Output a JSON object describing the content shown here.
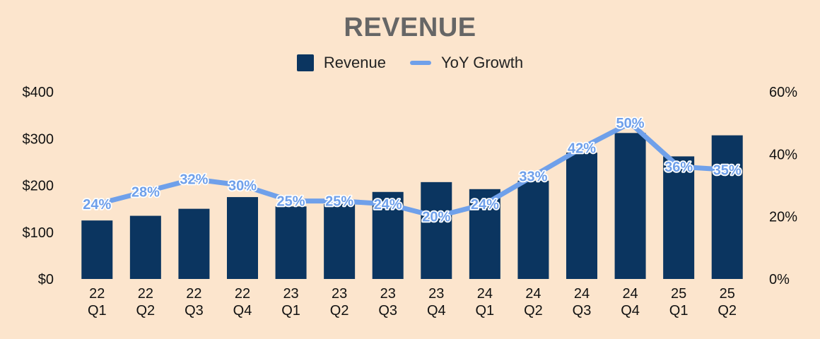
{
  "chart_data": {
    "type": "bar",
    "title": "REVENUE",
    "categories": [
      [
        "22",
        "Q1"
      ],
      [
        "22",
        "Q2"
      ],
      [
        "22",
        "Q3"
      ],
      [
        "22",
        "Q4"
      ],
      [
        "23",
        "Q1"
      ],
      [
        "23",
        "Q2"
      ],
      [
        "23",
        "Q3"
      ],
      [
        "23",
        "Q4"
      ],
      [
        "24",
        "Q1"
      ],
      [
        "24",
        "Q2"
      ],
      [
        "24",
        "Q3"
      ],
      [
        "24",
        "Q4"
      ],
      [
        "25",
        "Q1"
      ],
      [
        "25",
        "Q2"
      ]
    ],
    "series": [
      {
        "name": "Revenue",
        "type": "bar",
        "axis": "left",
        "color": "#0b3560",
        "values": [
          125,
          135,
          150,
          175,
          155,
          160,
          186,
          207,
          192,
          210,
          270,
          312,
          262,
          307
        ]
      },
      {
        "name": "YoY Growth",
        "type": "line",
        "axis": "right",
        "color": "#6fa0ea",
        "values": [
          24,
          28,
          32,
          30,
          25,
          25,
          24,
          20,
          24,
          33,
          42,
          50,
          36,
          35
        ],
        "labels": [
          "24%",
          "28%",
          "32%",
          "30%",
          "25%",
          "25%",
          "24%",
          "20%",
          "24%",
          "33%",
          "42%",
          "50%",
          "36%",
          "35%"
        ]
      }
    ],
    "y_left": {
      "min": 0,
      "max": 400,
      "ticks": [
        0,
        100,
        200,
        300,
        400
      ],
      "tick_labels": [
        "$0",
        "$100",
        "$200",
        "$300",
        "$400"
      ]
    },
    "y_right": {
      "min": 0,
      "max": 60,
      "ticks": [
        0,
        20,
        40,
        60
      ],
      "tick_labels": [
        "0%",
        "20%",
        "40%",
        "60%"
      ]
    },
    "legend": {
      "position": "top",
      "items": [
        "Revenue",
        "YoY Growth"
      ]
    },
    "grid": false
  }
}
